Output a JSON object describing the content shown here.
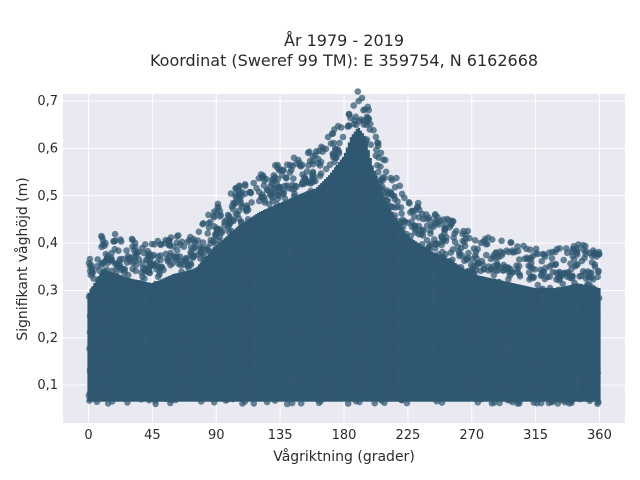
{
  "chart_data": {
    "type": "scatter",
    "title_line1": "År 1979 - 2019",
    "title_line2": "Koordinat (Sweref 99 TM): E 359754, N 6162668",
    "xlabel": "Vågriktning (grader)",
    "ylabel": "Signifikant våghöjd (m)",
    "xlim": [
      -18,
      378
    ],
    "ylim": [
      0.02,
      0.715
    ],
    "x_ticks": [
      0,
      45,
      90,
      135,
      180,
      225,
      270,
      315,
      360
    ],
    "x_tick_labels": [
      "0",
      "45",
      "90",
      "135",
      "180",
      "225",
      "270",
      "315",
      "360"
    ],
    "y_ticks": [
      0.1,
      0.2,
      0.3,
      0.4,
      0.5,
      0.6,
      0.7
    ],
    "y_tick_labels": [
      "0,1",
      "0,2",
      "0,3",
      "0,4",
      "0,5",
      "0,6",
      "0,7"
    ],
    "grid": true,
    "marker_color": "#2f5870",
    "plot_bg": "#e9e9f1",
    "x_range": [
      0,
      360
    ],
    "y_min": 0.05,
    "upper_envelope": [
      [
        0,
        0.33
      ],
      [
        10,
        0.38
      ],
      [
        20,
        0.37
      ],
      [
        30,
        0.36
      ],
      [
        45,
        0.35
      ],
      [
        60,
        0.37
      ],
      [
        75,
        0.38
      ],
      [
        90,
        0.43
      ],
      [
        105,
        0.47
      ],
      [
        120,
        0.5
      ],
      [
        135,
        0.52
      ],
      [
        150,
        0.54
      ],
      [
        160,
        0.55
      ],
      [
        170,
        0.58
      ],
      [
        180,
        0.62
      ],
      [
        185,
        0.66
      ],
      [
        190,
        0.68
      ],
      [
        195,
        0.66
      ],
      [
        200,
        0.6
      ],
      [
        210,
        0.52
      ],
      [
        225,
        0.45
      ],
      [
        240,
        0.42
      ],
      [
        255,
        0.4
      ],
      [
        270,
        0.37
      ],
      [
        285,
        0.36
      ],
      [
        300,
        0.35
      ],
      [
        315,
        0.34
      ],
      [
        330,
        0.34
      ],
      [
        345,
        0.35
      ],
      [
        360,
        0.34
      ]
    ]
  }
}
